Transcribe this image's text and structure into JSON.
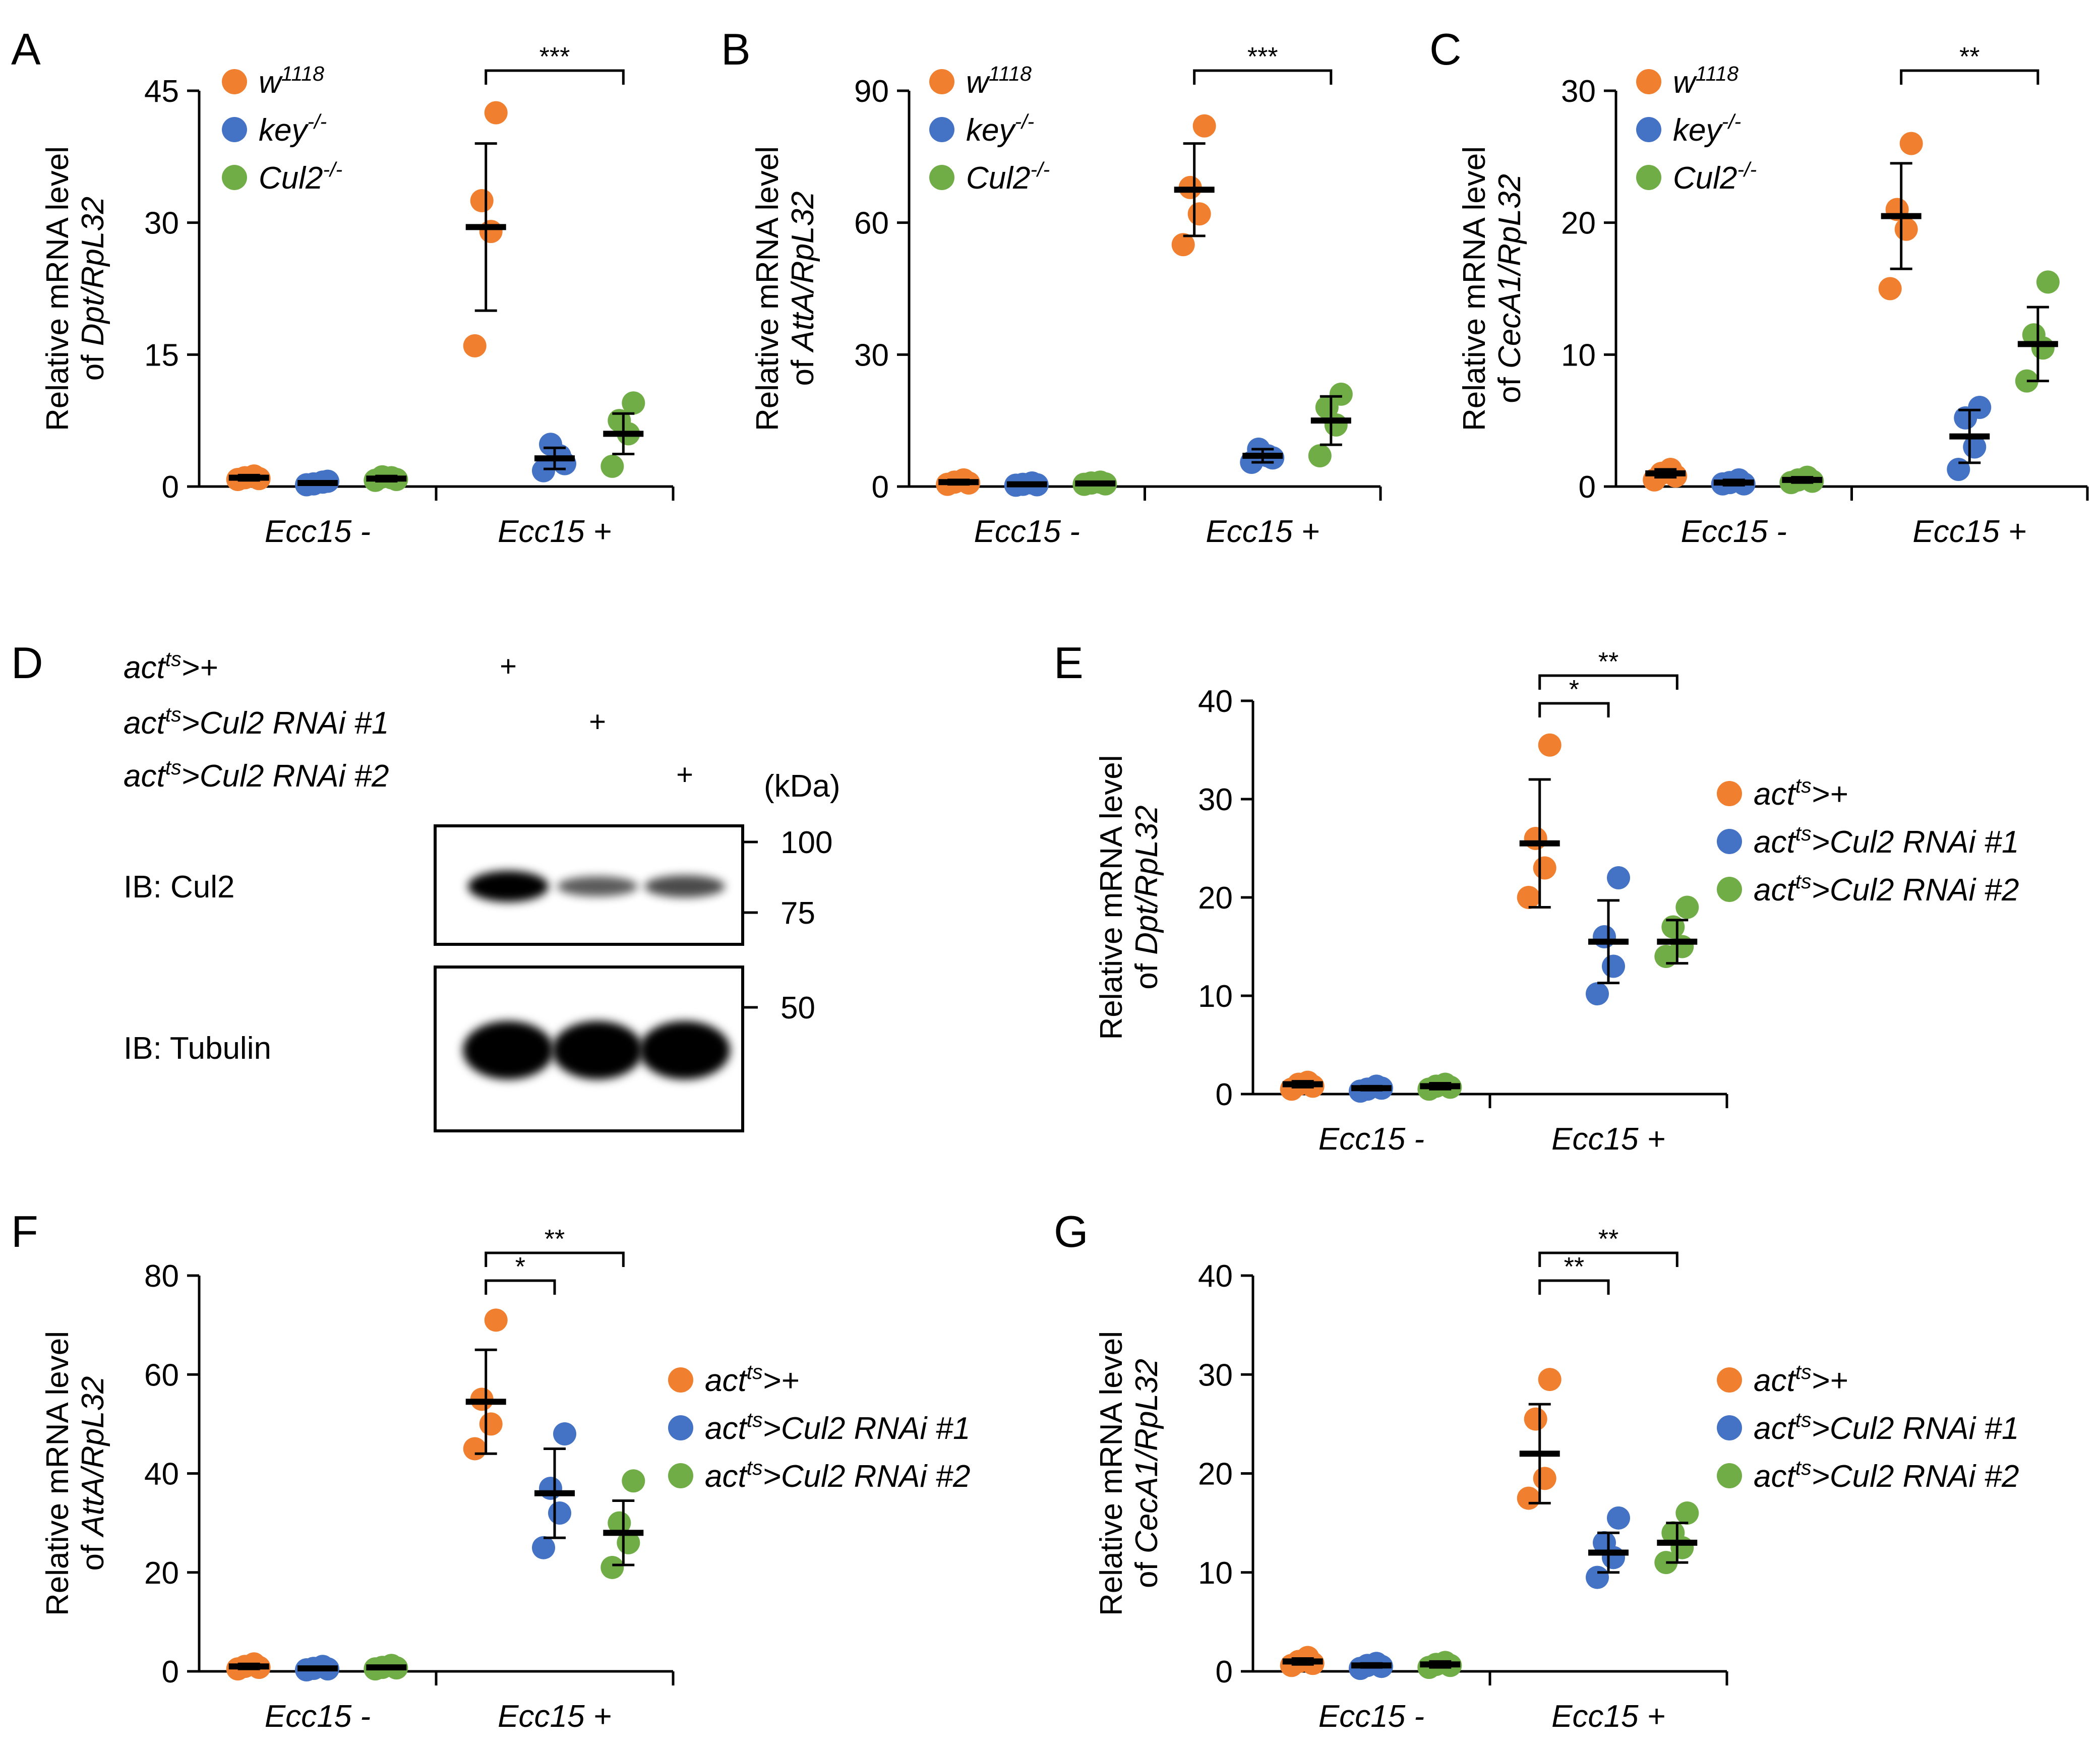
{
  "colors": {
    "w1118": "#F08030",
    "key": "#4472C4",
    "cul2": "#70AD47",
    "actts_plus": "#F08030",
    "rnai1": "#4472C4",
    "rnai2": "#70AD47",
    "axis": "#000000"
  },
  "chart_data": [
    {
      "panel": "A",
      "type": "scatter",
      "ylabel_line1": "Relative mRNA level",
      "ylabel_prefix": "of ",
      "ylabel_gene": "Dpt/RpL32",
      "ylim": [
        0,
        45
      ],
      "yticks": [
        0,
        15,
        30,
        45
      ],
      "categories": [
        "Ecc15 -",
        "Ecc15 +"
      ],
      "legend": [
        {
          "base": "w",
          "sup": "1118",
          "suffix": ""
        },
        {
          "base": "key",
          "sup": "-/-",
          "suffix": ""
        },
        {
          "base": "Cul2",
          "sup": "-/-",
          "suffix": ""
        }
      ],
      "series": [
        {
          "name": "w1118",
          "means": [
            1.0,
            29.5
          ],
          "sd": [
            0.3,
            9.5
          ],
          "points": [
            [
              0.8,
              1.2,
              1.0,
              0.9
            ],
            [
              16,
              29,
              32.5,
              42.5
            ]
          ]
        },
        {
          "name": "key-/-",
          "means": [
            0.4,
            3.2
          ],
          "sd": [
            0.2,
            1.2
          ],
          "points": [
            [
              0.2,
              0.5,
              0.3,
              0.6
            ],
            [
              1.8,
              3.5,
              4.8,
              2.6
            ]
          ]
        },
        {
          "name": "Cul2-/-",
          "means": [
            0.9,
            6.0
          ],
          "sd": [
            0.3,
            2.3
          ],
          "points": [
            [
              0.7,
              1.0,
              1.1,
              0.8
            ],
            [
              2.3,
              6,
              7.5,
              9.5
            ]
          ]
        }
      ],
      "significance": [
        {
          "from": 0,
          "to": 2,
          "label": "***"
        }
      ]
    },
    {
      "panel": "B",
      "type": "scatter",
      "ylabel_line1": "Relative mRNA level",
      "ylabel_prefix": "of ",
      "ylabel_gene": "AttA/RpL32",
      "ylim": [
        0,
        90
      ],
      "yticks": [
        0,
        30,
        60,
        90
      ],
      "categories": [
        "Ecc15 -",
        "Ecc15 +"
      ],
      "legend": [
        {
          "base": "w",
          "sup": "1118",
          "suffix": ""
        },
        {
          "base": "key",
          "sup": "-/-",
          "suffix": ""
        },
        {
          "base": "Cul2",
          "sup": "-/-",
          "suffix": ""
        }
      ],
      "series": [
        {
          "name": "w1118",
          "means": [
            1.0,
            67.5
          ],
          "sd": [
            0.5,
            10.5
          ],
          "points": [
            [
              0.5,
              1.5,
              1.0,
              0.8
            ],
            [
              55,
              62,
              68,
              82
            ]
          ]
        },
        {
          "name": "key-/-",
          "means": [
            0.5,
            7.0
          ],
          "sd": [
            0.3,
            1.5
          ],
          "points": [
            [
              0.3,
              0.8,
              0.5,
              0.4
            ],
            [
              5.5,
              7,
              8.5,
              6.5
            ]
          ]
        },
        {
          "name": "Cul2-/-",
          "means": [
            0.7,
            15.0
          ],
          "sd": [
            0.3,
            5.5
          ],
          "points": [
            [
              0.5,
              1.0,
              0.8,
              0.6
            ],
            [
              7,
              14,
              18,
              21
            ]
          ]
        }
      ],
      "significance": [
        {
          "from": 0,
          "to": 2,
          "label": "***"
        }
      ]
    },
    {
      "panel": "C",
      "type": "scatter",
      "ylabel_line1": "Relative mRNA level",
      "ylabel_prefix": "of ",
      "ylabel_gene": "CecA1/RpL32",
      "ylim": [
        0,
        30
      ],
      "yticks": [
        0,
        10,
        20,
        30
      ],
      "categories": [
        "Ecc15 -",
        "Ecc15 +"
      ],
      "legend": [
        {
          "base": "w",
          "sup": "1118",
          "suffix": ""
        },
        {
          "base": "key",
          "sup": "-/-",
          "suffix": ""
        },
        {
          "base": "Cul2",
          "sup": "-/-",
          "suffix": ""
        }
      ],
      "series": [
        {
          "name": "w1118",
          "means": [
            1.0,
            20.5
          ],
          "sd": [
            0.3,
            4.0
          ],
          "points": [
            [
              0.5,
              1.3,
              1.0,
              0.8
            ],
            [
              15,
              19.5,
              21,
              26
            ]
          ]
        },
        {
          "name": "key-/-",
          "means": [
            0.3,
            3.8
          ],
          "sd": [
            0.2,
            2.0
          ],
          "points": [
            [
              0.2,
              0.5,
              0.3,
              0.2
            ],
            [
              1.3,
              3,
              5.2,
              6
            ]
          ]
        },
        {
          "name": "Cul2-/-",
          "means": [
            0.5,
            10.8
          ],
          "sd": [
            0.2,
            2.8
          ],
          "points": [
            [
              0.3,
              0.7,
              0.5,
              0.4
            ],
            [
              8,
              10.5,
              11.5,
              15.5
            ]
          ]
        }
      ],
      "significance": [
        {
          "from": 0,
          "to": 2,
          "label": "**"
        }
      ]
    },
    {
      "panel": "E",
      "type": "scatter",
      "ylabel_line1": "Relative mRNA level",
      "ylabel_prefix": "of ",
      "ylabel_gene": "Dpt/RpL32",
      "ylim": [
        0,
        40
      ],
      "yticks": [
        0,
        10,
        20,
        30,
        40
      ],
      "categories": [
        "Ecc15 -",
        "Ecc15 +"
      ],
      "legend": [
        {
          "base": "act",
          "sup": "ts",
          "suffix": ">+"
        },
        {
          "base": "act",
          "sup": "ts",
          "suffix": ">Cul2 RNAi #1"
        },
        {
          "base": "act",
          "sup": "ts",
          "suffix": ">Cul2 RNAi #2"
        }
      ],
      "series": [
        {
          "name": "actts>+",
          "means": [
            1.0,
            25.5
          ],
          "sd": [
            0.3,
            6.5
          ],
          "points": [
            [
              0.5,
              1.2,
              1.0,
              0.8
            ],
            [
              20,
              23,
              26,
              35.5
            ]
          ]
        },
        {
          "name": "actts>Cul2 RNAi #1",
          "means": [
            0.6,
            15.5
          ],
          "sd": [
            0.2,
            4.2
          ],
          "points": [
            [
              0.3,
              0.8,
              0.5,
              0.6
            ],
            [
              10.2,
              13,
              16,
              22
            ]
          ]
        },
        {
          "name": "actts>Cul2 RNAi #2",
          "means": [
            0.8,
            15.5
          ],
          "sd": [
            0.3,
            2.2
          ],
          "points": [
            [
              0.5,
              1.0,
              0.8,
              0.7
            ],
            [
              14,
              15,
              17,
              19
            ]
          ]
        }
      ],
      "significance": [
        {
          "from": 0,
          "to": 1,
          "label": "*"
        },
        {
          "from": 0,
          "to": 2,
          "label": "**"
        }
      ]
    },
    {
      "panel": "F",
      "type": "scatter",
      "ylabel_line1": "Relative mRNA level",
      "ylabel_prefix": "of ",
      "ylabel_gene": "AttA/RpL32",
      "ylim": [
        0,
        80
      ],
      "yticks": [
        0,
        20,
        40,
        60,
        80
      ],
      "categories": [
        "Ecc15 -",
        "Ecc15 +"
      ],
      "legend": [
        {
          "base": "act",
          "sup": "ts",
          "suffix": ">+"
        },
        {
          "base": "act",
          "sup": "ts",
          "suffix": ">Cul2 RNAi #1"
        },
        {
          "base": "act",
          "sup": "ts",
          "suffix": ">Cul2 RNAi #2"
        }
      ],
      "series": [
        {
          "name": "actts>+",
          "means": [
            1.0,
            54.5
          ],
          "sd": [
            0.5,
            10.5
          ],
          "points": [
            [
              0.5,
              1.5,
              1.0,
              0.8
            ],
            [
              45,
              50,
              55,
              71
            ]
          ]
        },
        {
          "name": "actts>Cul2 RNAi #1",
          "means": [
            0.6,
            36.0
          ],
          "sd": [
            0.3,
            9.0
          ],
          "points": [
            [
              0.3,
              1.0,
              0.6,
              0.5
            ],
            [
              25,
              32,
              37,
              48
            ]
          ]
        },
        {
          "name": "actts>Cul2 RNAi #2",
          "means": [
            0.8,
            28.0
          ],
          "sd": [
            0.3,
            6.5
          ],
          "points": [
            [
              0.5,
              1.2,
              0.8,
              0.7
            ],
            [
              21,
              26,
              30,
              38.5
            ]
          ]
        }
      ],
      "significance": [
        {
          "from": 0,
          "to": 1,
          "label": "*"
        },
        {
          "from": 0,
          "to": 2,
          "label": "**"
        }
      ]
    },
    {
      "panel": "G",
      "type": "scatter",
      "ylabel_line1": "Relative mRNA level",
      "ylabel_prefix": "of ",
      "ylabel_gene": "CecA1/RpL32",
      "ylim": [
        0,
        40
      ],
      "yticks": [
        0,
        10,
        20,
        30,
        40
      ],
      "categories": [
        "Ecc15 -",
        "Ecc15 +"
      ],
      "legend": [
        {
          "base": "act",
          "sup": "ts",
          "suffix": ">+"
        },
        {
          "base": "act",
          "sup": "ts",
          "suffix": ">Cul2 RNAi #1"
        },
        {
          "base": "act",
          "sup": "ts",
          "suffix": ">Cul2 RNAi #2"
        }
      ],
      "series": [
        {
          "name": "actts>+",
          "means": [
            1.0,
            22.0
          ],
          "sd": [
            0.3,
            5.0
          ],
          "points": [
            [
              0.6,
              1.4,
              1.0,
              0.8
            ],
            [
              17.5,
              19.5,
              25.5,
              29.5
            ]
          ]
        },
        {
          "name": "actts>Cul2 RNAi #1",
          "means": [
            0.6,
            12.0
          ],
          "sd": [
            0.2,
            2.0
          ],
          "points": [
            [
              0.3,
              0.8,
              0.6,
              0.5
            ],
            [
              9.5,
              11.5,
              13,
              15.5
            ]
          ]
        },
        {
          "name": "actts>Cul2 RNAi #2",
          "means": [
            0.7,
            13.0
          ],
          "sd": [
            0.3,
            2.0
          ],
          "points": [
            [
              0.4,
              0.9,
              0.7,
              0.6
            ],
            [
              11,
              12.5,
              14,
              16
            ]
          ]
        }
      ],
      "significance": [
        {
          "from": 0,
          "to": 1,
          "label": "**"
        },
        {
          "from": 0,
          "to": 2,
          "label": "**"
        }
      ]
    }
  ],
  "western_blot": {
    "panel": "D",
    "conditions": [
      {
        "base": "act",
        "sup": "ts",
        "suffix": ">+",
        "mark": "+"
      },
      {
        "base": "act",
        "sup": "ts",
        "suffix": ">Cul2 RNAi #1",
        "mark": "+"
      },
      {
        "base": "act",
        "sup": "ts",
        "suffix": ">Cul2 RNAi #2",
        "mark": "+"
      }
    ],
    "kda_label": "(kDa)",
    "markers": [
      "100",
      "75",
      "50"
    ],
    "blots": [
      {
        "label": "IB: Cul2",
        "band_intensity": [
          1.0,
          0.45,
          0.55
        ]
      },
      {
        "label": "IB: Tubulin",
        "band_intensity": [
          1.0,
          1.0,
          1.0
        ]
      }
    ]
  }
}
